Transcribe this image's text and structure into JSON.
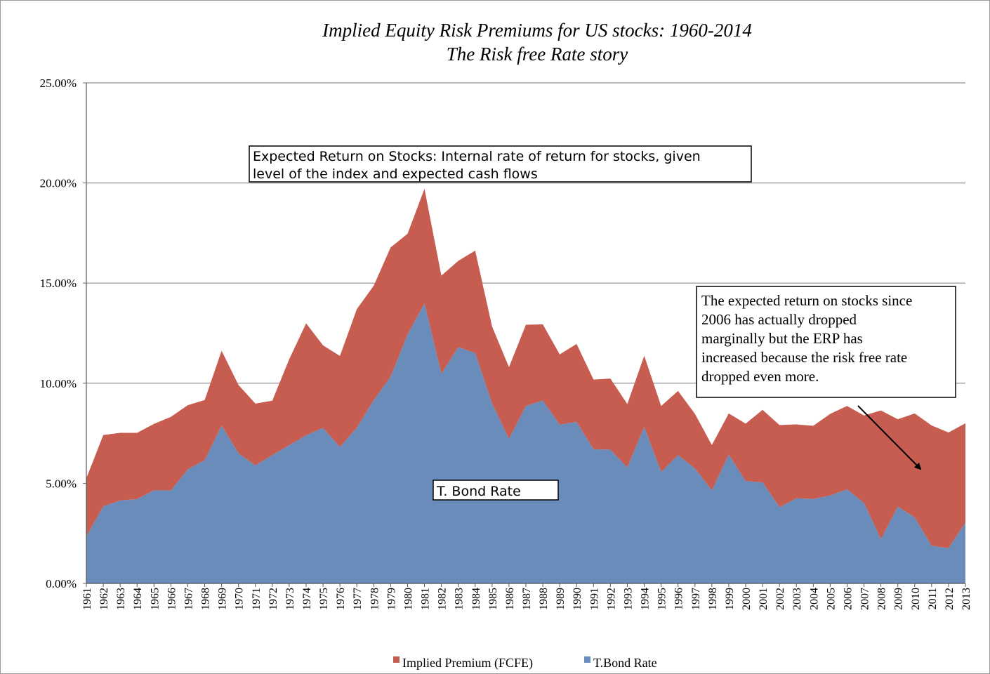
{
  "chart_data": {
    "type": "area",
    "stacked": true,
    "title": "Implied Equity Risk Premiums for US stocks: 1960-2014",
    "subtitle": "The Risk free Rate story",
    "x": [
      1961,
      1962,
      1963,
      1964,
      1965,
      1966,
      1967,
      1968,
      1969,
      1970,
      1971,
      1972,
      1973,
      1974,
      1975,
      1976,
      1977,
      1978,
      1979,
      1980,
      1981,
      1982,
      1983,
      1984,
      1985,
      1986,
      1987,
      1988,
      1989,
      1990,
      1991,
      1992,
      1993,
      1994,
      1995,
      1996,
      1997,
      1998,
      1999,
      2000,
      2001,
      2002,
      2003,
      2004,
      2005,
      2006,
      2007,
      2008,
      2009,
      2010,
      2011,
      2012,
      2013
    ],
    "x_labels": [
      "1961",
      "1962",
      "1963",
      "1964",
      "1965",
      "1966",
      "1967",
      "1968",
      "1969",
      "1970",
      "1971",
      "1972",
      "1973",
      "1974",
      "1975",
      "1976",
      "1977",
      "1978",
      "1979",
      "1980",
      "1981",
      "1982",
      "1983",
      "1984",
      "1985",
      "1986",
      "1987",
      "1988",
      "1989",
      "1990",
      "1991",
      "1992",
      "1993",
      "1994",
      "1995",
      "1996",
      "1997",
      "1998",
      "1999",
      "2000",
      "2001",
      "2002",
      "2003",
      "2004",
      "2005",
      "2006",
      "2007",
      "2008",
      "2009",
      "2010",
      "2011",
      "2012",
      "2013"
    ],
    "ylim": [
      0,
      25
    ],
    "y_ticks": [
      0,
      5,
      10,
      15,
      20,
      25
    ],
    "y_tick_labels": [
      "0.00%",
      "5.00%",
      "10.00%",
      "15.00%",
      "20.00%",
      "25.00%"
    ],
    "grid": true,
    "legend_position": "bottom",
    "series": [
      {
        "name": "T.Bond Rate",
        "color": "#6a8cbb",
        "values": [
          2.35,
          3.85,
          4.14,
          4.21,
          4.65,
          4.64,
          5.7,
          6.16,
          7.88,
          6.5,
          5.89,
          6.41,
          6.9,
          7.4,
          7.76,
          6.81,
          7.78,
          9.15,
          10.33,
          12.43,
          13.98,
          10.47,
          11.8,
          11.51,
          8.99,
          7.22,
          8.86,
          9.14,
          7.93,
          8.07,
          6.7,
          6.68,
          5.79,
          7.82,
          5.57,
          6.41,
          5.74,
          4.65,
          6.44,
          5.11,
          5.05,
          3.81,
          4.25,
          4.22,
          4.39,
          4.7,
          4.02,
          2.21,
          3.84,
          3.29,
          1.88,
          1.76,
          3.04
        ]
      },
      {
        "name": "Implied Premium (FCFE)",
        "color": "#c75d50",
        "values": [
          2.9,
          3.56,
          3.38,
          3.31,
          3.32,
          3.68,
          3.2,
          3.0,
          3.74,
          3.41,
          3.09,
          2.72,
          4.3,
          5.59,
          4.13,
          4.55,
          5.92,
          5.72,
          6.45,
          5.03,
          5.73,
          4.9,
          4.31,
          5.11,
          3.84,
          3.58,
          4.06,
          3.8,
          3.51,
          3.89,
          3.48,
          3.55,
          3.17,
          3.55,
          3.29,
          3.2,
          2.73,
          2.26,
          2.05,
          2.87,
          3.62,
          4.1,
          3.69,
          3.65,
          4.08,
          4.16,
          4.37,
          6.43,
          4.36,
          5.2,
          6.01,
          5.78,
          4.96
        ]
      }
    ],
    "annotations": [
      {
        "name": "expected-return-note",
        "lines": [
          "Expected Return on Stocks: Internal rate of return for stocks, given",
          "level of the index and expected cash flows"
        ]
      },
      {
        "name": "tbond-rate-note",
        "lines": [
          "T. Bond Rate"
        ]
      },
      {
        "name": "erp-note",
        "lines": [
          "The expected return on stocks since",
          "2006 has actually dropped",
          "marginally but the ERP has",
          "increased because the risk free rate",
          "dropped even more."
        ]
      }
    ]
  }
}
